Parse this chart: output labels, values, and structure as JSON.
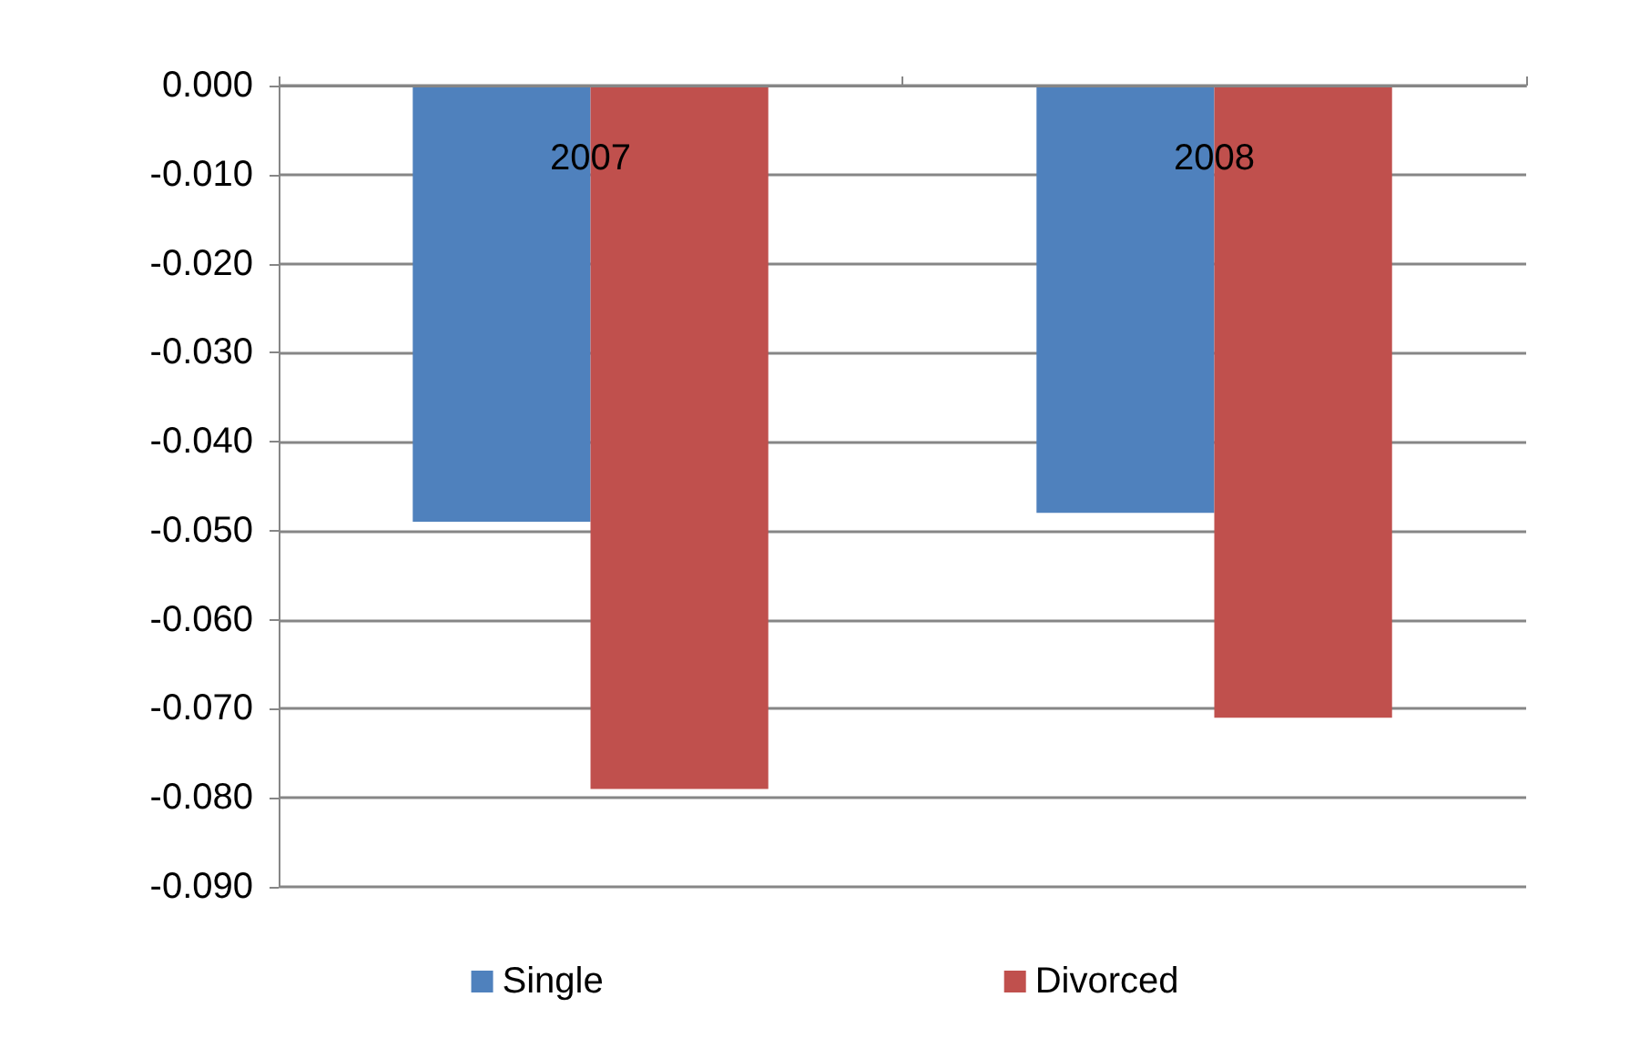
{
  "chart_data": {
    "type": "bar",
    "categories": [
      "2007",
      "2008"
    ],
    "series": [
      {
        "name": "Single",
        "color": "#4f81bd",
        "values": [
          -0.049,
          -0.048
        ]
      },
      {
        "name": "Divorced",
        "color": "#c0504d",
        "values": [
          -0.079,
          -0.071
        ]
      }
    ],
    "ylim": [
      -0.09,
      0
    ],
    "yticks": [
      {
        "value": 0,
        "label": "0.000"
      },
      {
        "value": -0.01,
        "label": "-0.010"
      },
      {
        "value": -0.02,
        "label": "-0.020"
      },
      {
        "value": -0.03,
        "label": "-0.030"
      },
      {
        "value": -0.04,
        "label": "-0.040"
      },
      {
        "value": -0.05,
        "label": "-0.050"
      },
      {
        "value": -0.06,
        "label": "-0.060"
      },
      {
        "value": -0.07,
        "label": "-0.070"
      },
      {
        "value": -0.08,
        "label": "-0.080"
      },
      {
        "value": -0.09,
        "label": "-0.090"
      }
    ],
    "grid": "y",
    "legend": "bottom"
  }
}
